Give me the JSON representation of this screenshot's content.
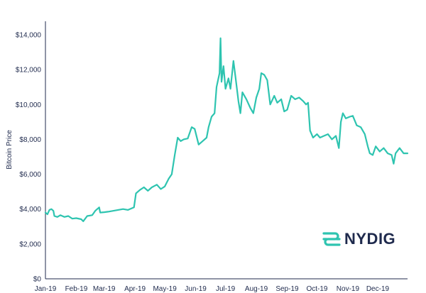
{
  "chart_data": {
    "type": "line",
    "title": "",
    "xlabel": "",
    "ylabel": "Bitcoin Price",
    "ylim": [
      0,
      14000
    ],
    "yticks": [
      0,
      2000,
      4000,
      6000,
      8000,
      10000,
      12000,
      14000
    ],
    "ytick_labels": [
      "$0",
      "$2,000",
      "$4,000",
      "$6,000",
      "$8,000",
      "$10,000",
      "$12,000",
      "$14,000"
    ],
    "x_range": [
      "2019-01-01",
      "2019-12-31"
    ],
    "xticks": [
      "2019-01-01",
      "2019-02-01",
      "2019-03-01",
      "2019-04-01",
      "2019-05-01",
      "2019-06-01",
      "2019-07-01",
      "2019-08-01",
      "2019-09-01",
      "2019-10-01",
      "2019-11-01",
      "2019-12-01"
    ],
    "xtick_labels": [
      "Jan-19",
      "Feb-19",
      "Mar-19",
      "Apr-19",
      "May-19",
      "Jun-19",
      "Jul-19",
      "Aug-19",
      "Sep-19",
      "Oct-19",
      "Nov-19",
      "Dec-19"
    ],
    "grid": false,
    "series": [
      {
        "color": "#2ec4b0",
        "points": [
          [
            "2019-01-01",
            3800
          ],
          [
            "2019-01-03",
            3700
          ],
          [
            "2019-01-05",
            3950
          ],
          [
            "2019-01-07",
            4000
          ],
          [
            "2019-01-09",
            3900
          ],
          [
            "2019-01-10",
            3600
          ],
          [
            "2019-01-13",
            3550
          ],
          [
            "2019-01-16",
            3650
          ],
          [
            "2019-01-20",
            3550
          ],
          [
            "2019-01-24",
            3600
          ],
          [
            "2019-01-28",
            3450
          ],
          [
            "2019-02-01",
            3480
          ],
          [
            "2019-02-06",
            3420
          ],
          [
            "2019-02-08",
            3300
          ],
          [
            "2019-02-12",
            3600
          ],
          [
            "2019-02-17",
            3650
          ],
          [
            "2019-02-20",
            3900
          ],
          [
            "2019-02-24",
            4100
          ],
          [
            "2019-02-25",
            3800
          ],
          [
            "2019-03-01",
            3820
          ],
          [
            "2019-03-05",
            3850
          ],
          [
            "2019-03-10",
            3900
          ],
          [
            "2019-03-15",
            3950
          ],
          [
            "2019-03-20",
            4000
          ],
          [
            "2019-03-25",
            3950
          ],
          [
            "2019-03-31",
            4100
          ],
          [
            "2019-04-02",
            4900
          ],
          [
            "2019-04-06",
            5100
          ],
          [
            "2019-04-10",
            5250
          ],
          [
            "2019-04-14",
            5050
          ],
          [
            "2019-04-18",
            5250
          ],
          [
            "2019-04-23",
            5400
          ],
          [
            "2019-04-27",
            5150
          ],
          [
            "2019-05-01",
            5300
          ],
          [
            "2019-05-05",
            5750
          ],
          [
            "2019-05-08",
            6000
          ],
          [
            "2019-05-11",
            7100
          ],
          [
            "2019-05-14",
            8100
          ],
          [
            "2019-05-17",
            7900
          ],
          [
            "2019-05-20",
            8000
          ],
          [
            "2019-05-24",
            8050
          ],
          [
            "2019-05-28",
            8700
          ],
          [
            "2019-05-31",
            8600
          ],
          [
            "2019-06-04",
            7700
          ],
          [
            "2019-06-08",
            7900
          ],
          [
            "2019-06-12",
            8100
          ],
          [
            "2019-06-14",
            8700
          ],
          [
            "2019-06-17",
            9300
          ],
          [
            "2019-06-20",
            9500
          ],
          [
            "2019-06-22",
            11000
          ],
          [
            "2019-06-25",
            11800
          ],
          [
            "2019-06-26",
            13800
          ],
          [
            "2019-06-27",
            11300
          ],
          [
            "2019-06-29",
            12200
          ],
          [
            "2019-07-01",
            10900
          ],
          [
            "2019-07-04",
            11500
          ],
          [
            "2019-07-06",
            10900
          ],
          [
            "2019-07-09",
            12500
          ],
          [
            "2019-07-11",
            11600
          ],
          [
            "2019-07-14",
            10200
          ],
          [
            "2019-07-16",
            9500
          ],
          [
            "2019-07-18",
            10700
          ],
          [
            "2019-07-22",
            10300
          ],
          [
            "2019-07-26",
            9800
          ],
          [
            "2019-07-29",
            9500
          ],
          [
            "2019-08-01",
            10400
          ],
          [
            "2019-08-04",
            10900
          ],
          [
            "2019-08-06",
            11800
          ],
          [
            "2019-08-09",
            11700
          ],
          [
            "2019-08-12",
            11400
          ],
          [
            "2019-08-15",
            10000
          ],
          [
            "2019-08-19",
            10500
          ],
          [
            "2019-08-22",
            10100
          ],
          [
            "2019-08-26",
            10300
          ],
          [
            "2019-08-29",
            9600
          ],
          [
            "2019-09-01",
            9700
          ],
          [
            "2019-09-05",
            10500
          ],
          [
            "2019-09-09",
            10300
          ],
          [
            "2019-09-13",
            10400
          ],
          [
            "2019-09-17",
            10200
          ],
          [
            "2019-09-20",
            10000
          ],
          [
            "2019-09-22",
            10100
          ],
          [
            "2019-09-24",
            8500
          ],
          [
            "2019-09-27",
            8100
          ],
          [
            "2019-10-01",
            8300
          ],
          [
            "2019-10-04",
            8100
          ],
          [
            "2019-10-08",
            8200
          ],
          [
            "2019-10-12",
            8300
          ],
          [
            "2019-10-16",
            8000
          ],
          [
            "2019-10-20",
            8200
          ],
          [
            "2019-10-23",
            7500
          ],
          [
            "2019-10-25",
            9000
          ],
          [
            "2019-10-27",
            9500
          ],
          [
            "2019-10-30",
            9200
          ],
          [
            "2019-11-03",
            9300
          ],
          [
            "2019-11-06",
            9350
          ],
          [
            "2019-11-10",
            8800
          ],
          [
            "2019-11-14",
            8700
          ],
          [
            "2019-11-18",
            8300
          ],
          [
            "2019-11-21",
            7600
          ],
          [
            "2019-11-23",
            7200
          ],
          [
            "2019-11-26",
            7100
          ],
          [
            "2019-11-29",
            7600
          ],
          [
            "2019-12-03",
            7300
          ],
          [
            "2019-12-07",
            7500
          ],
          [
            "2019-12-11",
            7200
          ],
          [
            "2019-12-15",
            7100
          ],
          [
            "2019-12-17",
            6600
          ],
          [
            "2019-12-19",
            7200
          ],
          [
            "2019-12-23",
            7500
          ],
          [
            "2019-12-27",
            7200
          ],
          [
            "2019-12-31",
            7200
          ]
        ]
      }
    ]
  },
  "logo": {
    "name": "NYDIG",
    "color": "#2ec4b0",
    "text_color": "#1f2a4d"
  }
}
